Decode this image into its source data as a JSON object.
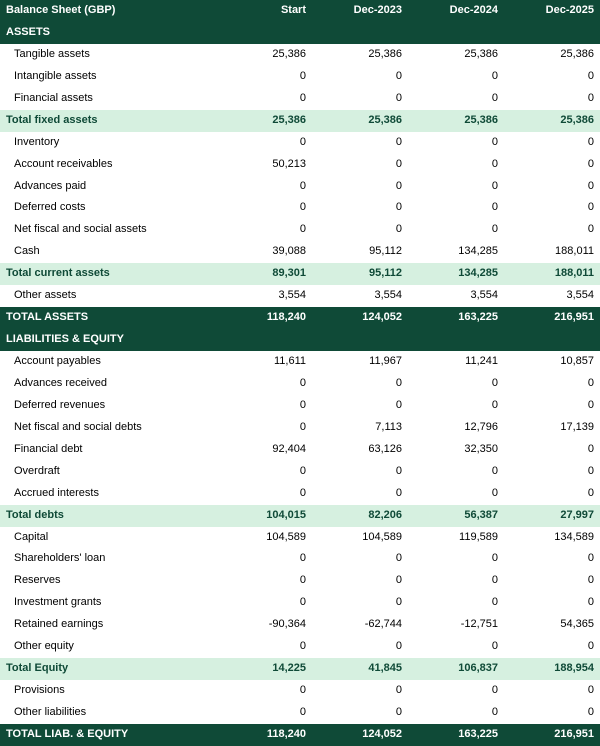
{
  "title": "Balance Sheet (GBP)",
  "columns": [
    "Start",
    "Dec-2023",
    "Dec-2024",
    "Dec-2025"
  ],
  "colors": {
    "header_bg": "#0f4a37",
    "header_fg": "#ffffff",
    "subtotal_bg": "#d6f0e0",
    "subtotal_fg": "#0f4a37",
    "line_bg": "#ffffff",
    "line_fg": "#000000"
  },
  "rows": [
    {
      "type": "section",
      "label": "ASSETS",
      "values": [
        "",
        "",
        "",
        ""
      ]
    },
    {
      "type": "line",
      "label": "Tangible assets",
      "values": [
        "25,386",
        "25,386",
        "25,386",
        "25,386"
      ]
    },
    {
      "type": "line",
      "label": "Intangible assets",
      "values": [
        "0",
        "0",
        "0",
        "0"
      ]
    },
    {
      "type": "line",
      "label": "Financial assets",
      "values": [
        "0",
        "0",
        "0",
        "0"
      ]
    },
    {
      "type": "subtotal",
      "label": "Total fixed assets",
      "values": [
        "25,386",
        "25,386",
        "25,386",
        "25,386"
      ]
    },
    {
      "type": "line",
      "label": "Inventory",
      "values": [
        "0",
        "0",
        "0",
        "0"
      ]
    },
    {
      "type": "line",
      "label": "Account receivables",
      "values": [
        "50,213",
        "0",
        "0",
        "0"
      ]
    },
    {
      "type": "line",
      "label": "Advances paid",
      "values": [
        "0",
        "0",
        "0",
        "0"
      ]
    },
    {
      "type": "line",
      "label": "Deferred costs",
      "values": [
        "0",
        "0",
        "0",
        "0"
      ]
    },
    {
      "type": "line",
      "label": "Net fiscal and social assets",
      "values": [
        "0",
        "0",
        "0",
        "0"
      ]
    },
    {
      "type": "line",
      "label": "Cash",
      "values": [
        "39,088",
        "95,112",
        "134,285",
        "188,011"
      ]
    },
    {
      "type": "subtotal",
      "label": "Total current assets",
      "values": [
        "89,301",
        "95,112",
        "134,285",
        "188,011"
      ]
    },
    {
      "type": "line",
      "label": "Other assets",
      "values": [
        "3,554",
        "3,554",
        "3,554",
        "3,554"
      ]
    },
    {
      "type": "total",
      "label": "TOTAL ASSETS",
      "values": [
        "118,240",
        "124,052",
        "163,225",
        "216,951"
      ]
    },
    {
      "type": "section",
      "label": "LIABILITIES & EQUITY",
      "values": [
        "",
        "",
        "",
        ""
      ]
    },
    {
      "type": "line",
      "label": "Account payables",
      "values": [
        "11,611",
        "11,967",
        "11,241",
        "10,857"
      ]
    },
    {
      "type": "line",
      "label": "Advances received",
      "values": [
        "0",
        "0",
        "0",
        "0"
      ]
    },
    {
      "type": "line",
      "label": "Deferred revenues",
      "values": [
        "0",
        "0",
        "0",
        "0"
      ]
    },
    {
      "type": "line",
      "label": "Net fiscal and social debts",
      "values": [
        "0",
        "7,113",
        "12,796",
        "17,139"
      ]
    },
    {
      "type": "line",
      "label": "Financial debt",
      "values": [
        "92,404",
        "63,126",
        "32,350",
        "0"
      ]
    },
    {
      "type": "line",
      "label": "Overdraft",
      "values": [
        "0",
        "0",
        "0",
        "0"
      ]
    },
    {
      "type": "line",
      "label": "Accrued interests",
      "values": [
        "0",
        "0",
        "0",
        "0"
      ]
    },
    {
      "type": "subtotal",
      "label": "Total debts",
      "values": [
        "104,015",
        "82,206",
        "56,387",
        "27,997"
      ]
    },
    {
      "type": "line",
      "label": "Capital",
      "values": [
        "104,589",
        "104,589",
        "119,589",
        "134,589"
      ]
    },
    {
      "type": "line",
      "label": "Shareholders' loan",
      "values": [
        "0",
        "0",
        "0",
        "0"
      ]
    },
    {
      "type": "line",
      "label": "Reserves",
      "values": [
        "0",
        "0",
        "0",
        "0"
      ]
    },
    {
      "type": "line",
      "label": "Investment grants",
      "values": [
        "0",
        "0",
        "0",
        "0"
      ]
    },
    {
      "type": "line",
      "label": "Retained earnings",
      "values": [
        "-90,364",
        "-62,744",
        "-12,751",
        "54,365"
      ]
    },
    {
      "type": "line",
      "label": "Other equity",
      "values": [
        "0",
        "0",
        "0",
        "0"
      ]
    },
    {
      "type": "subtotal",
      "label": "Total Equity",
      "values": [
        "14,225",
        "41,845",
        "106,837",
        "188,954"
      ]
    },
    {
      "type": "line",
      "label": "Provisions",
      "values": [
        "0",
        "0",
        "0",
        "0"
      ]
    },
    {
      "type": "line",
      "label": "Other liabilities",
      "values": [
        "0",
        "0",
        "0",
        "0"
      ]
    },
    {
      "type": "total",
      "label": "TOTAL LIAB. & EQUITY",
      "values": [
        "118,240",
        "124,052",
        "163,225",
        "216,951"
      ]
    }
  ]
}
